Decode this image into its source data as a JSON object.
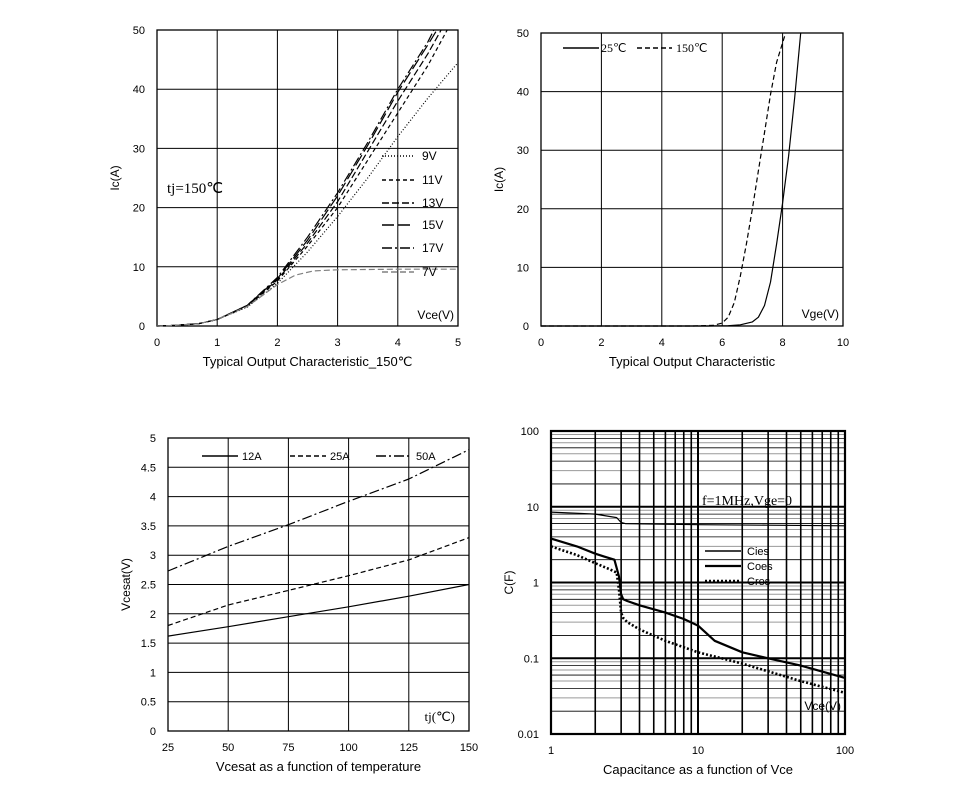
{
  "colors": {
    "axis": "#000000",
    "grid": "#000000",
    "minor_grid": "#9a9a9a",
    "gray_curve": "#808080"
  },
  "chart_data": [
    {
      "id": "c1",
      "type": "line",
      "title": "Typical Output Characteristic_150℃",
      "xlabel": "",
      "ylabel": "Ic(A)",
      "x_axis_tag": "Vce(V)",
      "annotation": "tj=150℃",
      "xlim": [
        0,
        5
      ],
      "ylim": [
        0,
        50
      ],
      "xticks": [
        0,
        1,
        2,
        3,
        4,
        5
      ],
      "yticks": [
        0,
        10,
        20,
        30,
        40,
        50
      ],
      "legend_position": "right-middle",
      "series": [
        {
          "name": "9V",
          "dash": "1,2",
          "color": "#000000",
          "x": [
            0,
            0.3,
            0.7,
            1,
            1.5,
            2,
            2.5,
            3,
            3.5,
            4,
            4.5,
            5
          ],
          "y": [
            0,
            0.1,
            0.4,
            1.1,
            3.2,
            7.2,
            12.5,
            18.5,
            25,
            32,
            38.5,
            44.5
          ]
        },
        {
          "name": "11V",
          "dash": "4,3",
          "color": "#000000",
          "x": [
            0,
            0.3,
            0.7,
            1,
            1.5,
            2,
            2.5,
            3,
            3.5,
            4,
            4.5,
            4.82
          ],
          "y": [
            0,
            0.1,
            0.4,
            1.1,
            3.3,
            7.6,
            13.5,
            20,
            28,
            36,
            44,
            50
          ]
        },
        {
          "name": "13V",
          "dash": "7,3",
          "color": "#000000",
          "x": [
            0,
            0.3,
            0.7,
            1,
            1.5,
            2,
            2.5,
            3,
            3.5,
            4,
            4.5,
            4.72
          ],
          "y": [
            0,
            0.1,
            0.4,
            1.1,
            3.4,
            7.8,
            14,
            21,
            29.5,
            38,
            46,
            50
          ]
        },
        {
          "name": "15V",
          "dash": "12,4",
          "color": "#000000",
          "x": [
            0,
            0.3,
            0.7,
            1,
            1.5,
            2,
            2.5,
            3,
            3.5,
            4,
            4.5,
            4.65
          ],
          "y": [
            0,
            0.1,
            0.4,
            1.1,
            3.5,
            8,
            14.5,
            22,
            30.5,
            39.5,
            47.5,
            50
          ]
        },
        {
          "name": "17V",
          "dash": "10,3,2,3",
          "color": "#000000",
          "x": [
            0,
            0.3,
            0.7,
            1,
            1.5,
            2,
            2.5,
            3,
            3.5,
            4,
            4.5,
            4.6
          ],
          "y": [
            0,
            0.1,
            0.4,
            1.1,
            3.5,
            8.2,
            15,
            22.5,
            31,
            40,
            48,
            50
          ]
        },
        {
          "name": "7V",
          "dash": "6,3",
          "color": "#808080",
          "x": [
            0,
            0.3,
            0.7,
            1,
            1.5,
            2,
            2.3,
            2.6,
            3,
            4,
            5
          ],
          "y": [
            0,
            0.1,
            0.4,
            1.1,
            3.3,
            7,
            8.6,
            9.3,
            9.5,
            9.6,
            9.6
          ]
        }
      ]
    },
    {
      "id": "c2",
      "type": "line",
      "title": "Typical Output Characteristic",
      "xlabel": "",
      "ylabel": "Ic(A)",
      "x_axis_tag": "Vge(V)",
      "xlim": [
        0,
        10
      ],
      "ylim": [
        0,
        50
      ],
      "xticks": [
        0,
        2,
        4,
        6,
        8,
        10
      ],
      "yticks": [
        0,
        10,
        20,
        30,
        40,
        50
      ],
      "legend_position": "top-left",
      "series": [
        {
          "name": "25℃",
          "dash": "",
          "color": "#000000",
          "x": [
            0,
            5.5,
            6.2,
            6.6,
            7,
            7.2,
            7.4,
            7.6,
            7.8,
            8,
            8.2,
            8.4,
            8.6
          ],
          "y": [
            0,
            0,
            0.05,
            0.2,
            0.7,
            1.5,
            3.5,
            7.5,
            14,
            21,
            29,
            39,
            50
          ]
        },
        {
          "name": "150℃",
          "dash": "5,3",
          "color": "#000000",
          "x": [
            0,
            5,
            5.7,
            6,
            6.2,
            6.4,
            6.6,
            6.8,
            7,
            7.2,
            7.4,
            7.6,
            7.8,
            8.1
          ],
          "y": [
            0,
            0,
            0.1,
            0.5,
            1.5,
            4,
            8.5,
            14,
            20,
            26.5,
            33,
            39.5,
            45,
            50
          ]
        }
      ]
    },
    {
      "id": "c3",
      "type": "line",
      "title": "Vcesat as a function of temperature",
      "xlabel": "",
      "ylabel": "Vcesat(V)",
      "x_axis_tag": "tj(℃)",
      "xlim": [
        25,
        150
      ],
      "ylim": [
        0,
        5
      ],
      "xticks": [
        25,
        50,
        75,
        100,
        125,
        150
      ],
      "yticks": [
        0,
        0.5,
        1,
        1.5,
        2,
        2.5,
        3,
        3.5,
        4,
        4.5,
        5
      ],
      "legend_position": "top",
      "series": [
        {
          "name": "12A",
          "dash": "",
          "color": "#000000",
          "x": [
            25,
            50,
            75,
            100,
            125,
            150
          ],
          "y": [
            1.62,
            1.78,
            1.95,
            2.12,
            2.3,
            2.5
          ]
        },
        {
          "name": "25A",
          "dash": "5,3",
          "color": "#000000",
          "x": [
            25,
            50,
            75,
            100,
            125,
            150
          ],
          "y": [
            1.8,
            2.15,
            2.4,
            2.65,
            2.92,
            3.3
          ]
        },
        {
          "name": "50A",
          "dash": "10,3,2,3",
          "color": "#000000",
          "x": [
            25,
            50,
            75,
            100,
            125,
            150
          ],
          "y": [
            2.73,
            3.15,
            3.52,
            3.92,
            4.3,
            4.8
          ]
        }
      ]
    },
    {
      "id": "c4",
      "type": "line",
      "title": "Capacitance as a function of Vce",
      "xlabel": "",
      "ylabel": "C(F)",
      "x_axis_tag": "Vce(V)",
      "annotation": "f=1MHz,Vge=0",
      "xscale": "log",
      "yscale": "log",
      "xlim": [
        1,
        100
      ],
      "ylim": [
        0.01,
        100
      ],
      "xticks": [
        1,
        10,
        100
      ],
      "yticks": [
        0.01,
        0.1,
        1,
        10,
        100
      ],
      "xtick_labels": [
        "1",
        "10",
        "100"
      ],
      "ytick_labels": [
        "0.01",
        "0.1",
        "1",
        "10",
        "100"
      ],
      "legend_position": "right-middle",
      "series": [
        {
          "name": "Cies",
          "dash": "",
          "width": 1.2,
          "color": "#000000",
          "x": [
            1,
            2,
            2.8,
            3,
            3.2,
            10,
            30,
            100
          ],
          "y": [
            8.5,
            8,
            7.2,
            6.2,
            6,
            5.8,
            5.7,
            5.6
          ]
        },
        {
          "name": "Coes",
          "dash": "",
          "width": 2.2,
          "color": "#000000",
          "x": [
            1,
            1.5,
            2,
            2.3,
            2.7,
            2.9,
            3.0,
            3.1,
            3.3,
            4,
            6,
            8,
            10,
            13,
            20,
            30,
            50,
            100
          ],
          "y": [
            3.8,
            3,
            2.4,
            2.2,
            2,
            1.2,
            0.7,
            0.6,
            0.57,
            0.5,
            0.4,
            0.33,
            0.27,
            0.17,
            0.12,
            0.1,
            0.08,
            0.055
          ]
        },
        {
          "name": "Cres",
          "dash": "2,2",
          "width": 2.6,
          "color": "#000000",
          "x": [
            1,
            1.5,
            2,
            2.5,
            2.8,
            2.9,
            3.0,
            3.1,
            3.3,
            4,
            6,
            10,
            20,
            50,
            100
          ],
          "y": [
            3,
            2.3,
            1.8,
            1.5,
            1.35,
            0.8,
            0.4,
            0.34,
            0.3,
            0.24,
            0.17,
            0.12,
            0.085,
            0.05,
            0.035
          ]
        }
      ]
    }
  ]
}
